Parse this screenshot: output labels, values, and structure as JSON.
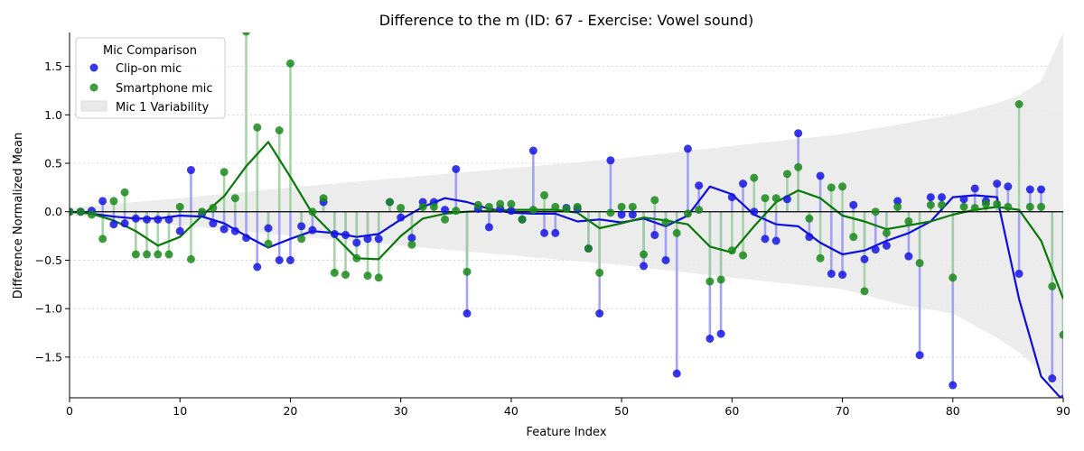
{
  "chart_data": {
    "type": "scatter",
    "title": "Difference to the m (ID: 67 - Exercise: Vowel sound)",
    "xlabel": "Feature Index",
    "ylabel": "Difference Normalized Mean",
    "xlim": [
      0,
      90
    ],
    "ylim": [
      -1.92,
      1.85
    ],
    "xticks": [
      0,
      10,
      20,
      30,
      40,
      50,
      60,
      70,
      80,
      90
    ],
    "yticks": [
      -1.5,
      -1.0,
      -0.5,
      0.0,
      0.5,
      1.0,
      1.5
    ],
    "ytick_labels": [
      "−1.5",
      "−1.0",
      "−0.5",
      "0.0",
      "0.5",
      "1.0",
      "1.5"
    ],
    "grid": "horizontal dotted",
    "legend": {
      "title": "Mic Comparison",
      "placement": "top-left",
      "entries": [
        "Clip-on mic",
        "Smartphone mic",
        "Mic 1 Variability"
      ]
    },
    "colors": {
      "clip_on": "#1515e6",
      "clip_on_stem": "#9a9af5",
      "smartphone": "#1a8a1a",
      "smartphone_stem": "#9fd09f",
      "clip_on_trend": "#0d0de0",
      "smartphone_trend": "#087808",
      "band": "#e9e9e9",
      "zero_line": "#000000"
    },
    "series": [
      {
        "name": "Clip-on mic",
        "x": [
          0,
          1,
          2,
          3,
          4,
          5,
          6,
          7,
          8,
          9,
          10,
          11,
          12,
          13,
          14,
          15,
          16,
          17,
          18,
          19,
          20,
          21,
          22,
          23,
          24,
          25,
          26,
          27,
          28,
          29,
          30,
          31,
          32,
          33,
          34,
          35,
          36,
          37,
          38,
          39,
          40,
          41,
          42,
          43,
          44,
          45,
          46,
          47,
          48,
          49,
          50,
          51,
          52,
          53,
          54,
          55,
          56,
          57,
          58,
          59,
          60,
          61,
          62,
          63,
          64,
          65,
          66,
          67,
          68,
          69,
          70,
          71,
          72,
          73,
          74,
          75,
          76,
          77,
          78,
          79,
          80,
          81,
          82,
          83,
          84,
          85,
          86,
          87,
          88,
          89,
          90
        ],
        "y": [
          0.0,
          0.0,
          0.01,
          0.11,
          -0.13,
          -0.12,
          -0.07,
          -0.08,
          -0.08,
          -0.08,
          -0.2,
          0.43,
          -0.02,
          -0.12,
          -0.18,
          -0.2,
          -0.27,
          -0.57,
          -0.17,
          -0.5,
          -0.5,
          -0.15,
          -0.19,
          0.1,
          -0.23,
          -0.24,
          -0.32,
          -0.28,
          -0.28,
          0.1,
          -0.06,
          -0.27,
          0.1,
          0.1,
          0.02,
          0.44,
          -1.05,
          0.03,
          -0.16,
          0.03,
          0.01,
          -0.08,
          0.63,
          -0.22,
          -0.22,
          0.04,
          0.03,
          -0.38,
          -1.05,
          0.53,
          -0.03,
          -0.03,
          -0.56,
          -0.24,
          -0.5,
          -1.67,
          0.65,
          0.27,
          -1.31,
          -1.26,
          0.15,
          0.29,
          0.0,
          -0.28,
          -0.3,
          0.13,
          0.81,
          -0.26,
          0.37,
          -0.64,
          -0.65,
          0.07,
          -0.49,
          -0.39,
          -0.35,
          0.11,
          -0.46,
          -1.48,
          0.15,
          0.15,
          -1.79,
          0.13,
          0.24,
          0.11,
          0.29,
          0.26,
          -0.64,
          0.23,
          0.23,
          -1.72,
          -1.93
        ]
      },
      {
        "name": "Smartphone mic",
        "x": [
          0,
          1,
          2,
          3,
          4,
          5,
          6,
          7,
          8,
          9,
          10,
          11,
          12,
          13,
          14,
          15,
          16,
          17,
          18,
          19,
          20,
          21,
          22,
          23,
          24,
          25,
          26,
          27,
          28,
          29,
          30,
          31,
          32,
          33,
          34,
          35,
          36,
          37,
          38,
          39,
          40,
          41,
          42,
          43,
          44,
          45,
          46,
          47,
          48,
          49,
          50,
          51,
          52,
          53,
          54,
          55,
          56,
          57,
          58,
          59,
          60,
          61,
          62,
          63,
          64,
          65,
          66,
          67,
          68,
          69,
          70,
          71,
          72,
          73,
          74,
          75,
          76,
          77,
          78,
          79,
          80,
          81,
          82,
          83,
          84,
          85,
          86,
          87,
          88,
          89,
          90
        ],
        "y": [
          0.0,
          0.0,
          -0.03,
          -0.28,
          0.11,
          0.2,
          -0.44,
          -0.44,
          -0.44,
          -0.44,
          0.05,
          -0.49,
          0.0,
          0.04,
          0.41,
          0.14,
          1.86,
          0.87,
          -0.33,
          0.84,
          1.53,
          -0.28,
          0.0,
          0.14,
          -0.63,
          -0.65,
          -0.48,
          -0.66,
          -0.68,
          0.1,
          0.04,
          -0.34,
          0.05,
          0.05,
          -0.08,
          0.01,
          -0.62,
          0.07,
          0.05,
          0.08,
          0.08,
          -0.08,
          0.02,
          0.17,
          0.05,
          0.03,
          0.05,
          -0.38,
          -0.63,
          -0.01,
          0.05,
          0.05,
          -0.44,
          0.12,
          -0.11,
          -0.22,
          -0.02,
          0.02,
          -0.72,
          -0.7,
          -0.4,
          -0.45,
          0.35,
          0.14,
          0.14,
          0.39,
          0.46,
          -0.07,
          -0.48,
          0.25,
          0.26,
          -0.26,
          -0.82,
          0.0,
          -0.22,
          0.05,
          -0.1,
          -0.53,
          0.07,
          0.07,
          -0.68,
          0.05,
          0.04,
          0.08,
          0.08,
          0.05,
          1.11,
          0.05,
          0.05,
          -0.77,
          -1.27
        ]
      },
      {
        "name": "Clip-on trend",
        "x": [
          0,
          2,
          4,
          6,
          8,
          10,
          12,
          14,
          16,
          18,
          20,
          22,
          24,
          26,
          28,
          30,
          32,
          34,
          36,
          38,
          40,
          42,
          44,
          46,
          48,
          50,
          52,
          54,
          56,
          58,
          60,
          62,
          64,
          66,
          68,
          70,
          72,
          74,
          76,
          78,
          80,
          82,
          84,
          86,
          88,
          90
        ],
        "y": [
          0.0,
          -0.02,
          -0.05,
          -0.07,
          -0.07,
          -0.04,
          -0.05,
          -0.12,
          -0.25,
          -0.37,
          -0.28,
          -0.2,
          -0.22,
          -0.26,
          -0.23,
          -0.08,
          0.05,
          0.14,
          0.1,
          0.03,
          -0.01,
          -0.02,
          -0.02,
          -0.1,
          -0.08,
          -0.11,
          -0.07,
          -0.15,
          -0.04,
          0.26,
          0.18,
          -0.03,
          -0.13,
          -0.15,
          -0.32,
          -0.44,
          -0.4,
          -0.3,
          -0.22,
          -0.1,
          0.15,
          0.17,
          0.15,
          -0.9,
          -1.7,
          -1.95
        ]
      },
      {
        "name": "Smartphone trend",
        "x": [
          0,
          2,
          4,
          6,
          8,
          10,
          12,
          14,
          16,
          18,
          20,
          22,
          24,
          26,
          28,
          30,
          32,
          34,
          36,
          38,
          40,
          42,
          44,
          46,
          48,
          50,
          52,
          54,
          56,
          58,
          60,
          62,
          64,
          66,
          68,
          70,
          72,
          74,
          76,
          78,
          80,
          82,
          84,
          86,
          88,
          90
        ],
        "y": [
          0.0,
          -0.02,
          -0.09,
          -0.2,
          -0.35,
          -0.26,
          -0.04,
          0.16,
          0.47,
          0.72,
          0.36,
          -0.02,
          -0.25,
          -0.48,
          -0.49,
          -0.25,
          -0.07,
          -0.02,
          0.0,
          0.01,
          0.02,
          0.02,
          0.02,
          -0.01,
          -0.17,
          -0.12,
          -0.06,
          -0.09,
          -0.13,
          -0.36,
          -0.42,
          -0.15,
          0.1,
          0.22,
          0.14,
          -0.04,
          -0.1,
          -0.18,
          -0.14,
          -0.1,
          -0.03,
          0.02,
          0.05,
          0.02,
          -0.3,
          -0.9
        ]
      }
    ],
    "variability_band": {
      "name": "Mic 1 Variability",
      "x": [
        0,
        10,
        20,
        30,
        40,
        50,
        60,
        70,
        75,
        80,
        84,
        86,
        88,
        90
      ],
      "upper": [
        0.04,
        0.14,
        0.25,
        0.35,
        0.45,
        0.55,
        0.68,
        0.8,
        0.9,
        1.0,
        1.12,
        1.2,
        1.35,
        1.85
      ],
      "lower": [
        -0.04,
        -0.14,
        -0.25,
        -0.35,
        -0.45,
        -0.55,
        -0.68,
        -0.8,
        -0.95,
        -1.05,
        -1.3,
        -1.45,
        -1.65,
        -1.92
      ]
    }
  }
}
